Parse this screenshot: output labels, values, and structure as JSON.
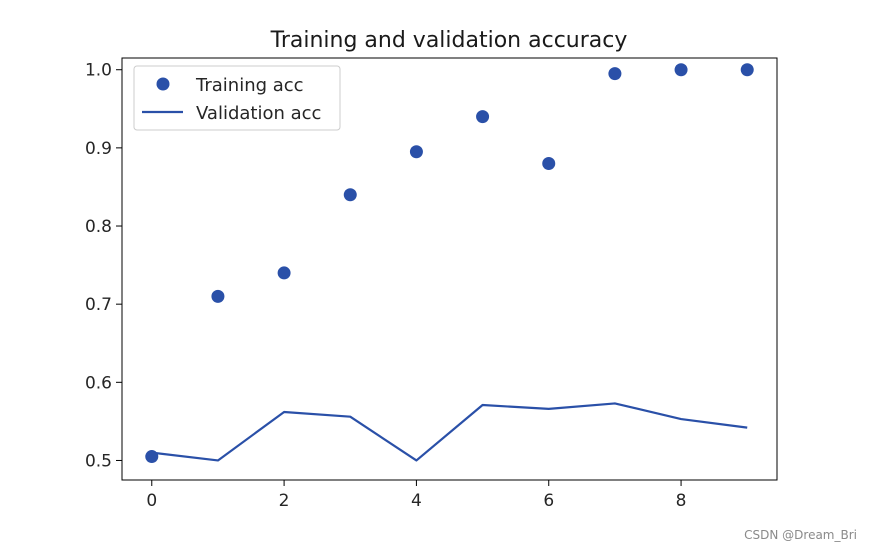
{
  "chart_data": {
    "type": "line",
    "title": "Training and validation accuracy",
    "xlabel": "",
    "ylabel": "",
    "x": [
      0,
      1,
      2,
      3,
      4,
      5,
      6,
      7,
      8,
      9
    ],
    "xlim": [
      -0.45,
      9.45
    ],
    "ylim": [
      0.475,
      1.015
    ],
    "xticks": [
      0,
      2,
      4,
      6,
      8
    ],
    "yticks": [
      0.5,
      0.6,
      0.7,
      0.8,
      0.9,
      1.0
    ],
    "ytick_labels": [
      "0.5",
      "0.6",
      "0.7",
      "0.8",
      "0.9",
      "1.0"
    ],
    "grid": false,
    "legend_position": "top-left",
    "series": [
      {
        "name": "Training acc",
        "style": "scatter",
        "color": "#2a50a8",
        "values": [
          0.505,
          0.71,
          0.74,
          0.84,
          0.895,
          0.94,
          0.88,
          0.995,
          1.0,
          1.0
        ]
      },
      {
        "name": "Validation acc",
        "style": "line",
        "color": "#2a50a8",
        "values": [
          0.51,
          0.5,
          0.562,
          0.556,
          0.5,
          0.571,
          0.566,
          0.573,
          0.553,
          0.542
        ]
      }
    ]
  },
  "watermark": "CSDN @Dream_Bri"
}
